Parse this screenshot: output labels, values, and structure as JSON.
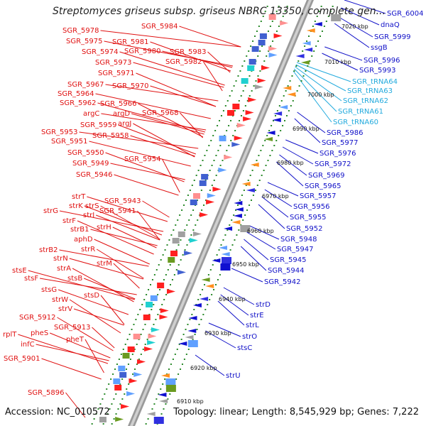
{
  "title": "Streptomyces griseus subsp. griseus NBRC 13350, complete gen...",
  "footer": {
    "accession": "Accession: NC_010572",
    "stats": "Topology: linear; Length: 8,545,929 bp; Genes: 7,222"
  },
  "colors": {
    "left_label": "#e01010",
    "right_label": "#1010c8",
    "trna_label": "#22aadd",
    "backbone": "#999999",
    "tick": "#2a8a2a"
  },
  "kbp_ticks": [
    "7020 kbp",
    "7010 kbp",
    "7000 kbp",
    "6990 kbp",
    "6980 kbp",
    "6970 kbp",
    "6960 kbp",
    "6950 kbp",
    "6940 kbp",
    "6930 kbp",
    "6920 kbp",
    "6910 kbp"
  ],
  "left_labels": [
    "SGR_5978",
    "SGR_5984",
    "SGR_5975",
    "SGR_5981",
    "SGR_5974",
    "SGR_5980",
    "SGR_5983",
    "SGR_5973",
    "SGR_5982",
    "SGR_5971",
    "SGR_5967",
    "SGR_5970",
    "SGR_5964",
    "SGR_5962",
    "SGR_5966",
    "argC",
    "argD",
    "SGR_5968",
    "SGR_5959",
    "argJ",
    "SGR_5953",
    "SGR_5958",
    "SGR_5951",
    "SGR_5950",
    "SGR_5954",
    "SGR_5949",
    "SGR_5946",
    "strT",
    "strK",
    "strS",
    "SGR_5943",
    "strG",
    "strI",
    "SGR_5941",
    "strF",
    "strB1",
    "strH",
    "aphD",
    "strR",
    "SGR_5912",
    "strB2",
    "strN",
    "strM",
    "stsE",
    "strA",
    "stsF",
    "stsB",
    "stsG",
    "stsD",
    "strW",
    "strV",
    "SGR_5913",
    "pheS",
    "rplT",
    "pheT",
    "infC",
    "SGR_5901",
    "SGR_5896"
  ],
  "right_labels": [
    "SGR_6004",
    "dnaQ",
    "SGR_5999",
    "ssgB",
    "SGR_5996",
    "SGR_5993",
    "SGR_5986",
    "SGR_5977",
    "SGR_5976",
    "SGR_5972",
    "SGR_5969",
    "SGR_5965",
    "SGR_5957",
    "SGR_5956",
    "SGR_5955",
    "SGR_5952",
    "SGR_5948",
    "SGR_5947",
    "SGR_5945",
    "SGR_5944",
    "SGR_5942",
    "strD",
    "strE",
    "strL",
    "strO",
    "stsC",
    "strU"
  ],
  "trna_labels": [
    "SGR_tRNA64",
    "SGR_tRNA63",
    "SGR_tRNA62",
    "SGR_tRNA61",
    "SGR_tRNA60"
  ]
}
